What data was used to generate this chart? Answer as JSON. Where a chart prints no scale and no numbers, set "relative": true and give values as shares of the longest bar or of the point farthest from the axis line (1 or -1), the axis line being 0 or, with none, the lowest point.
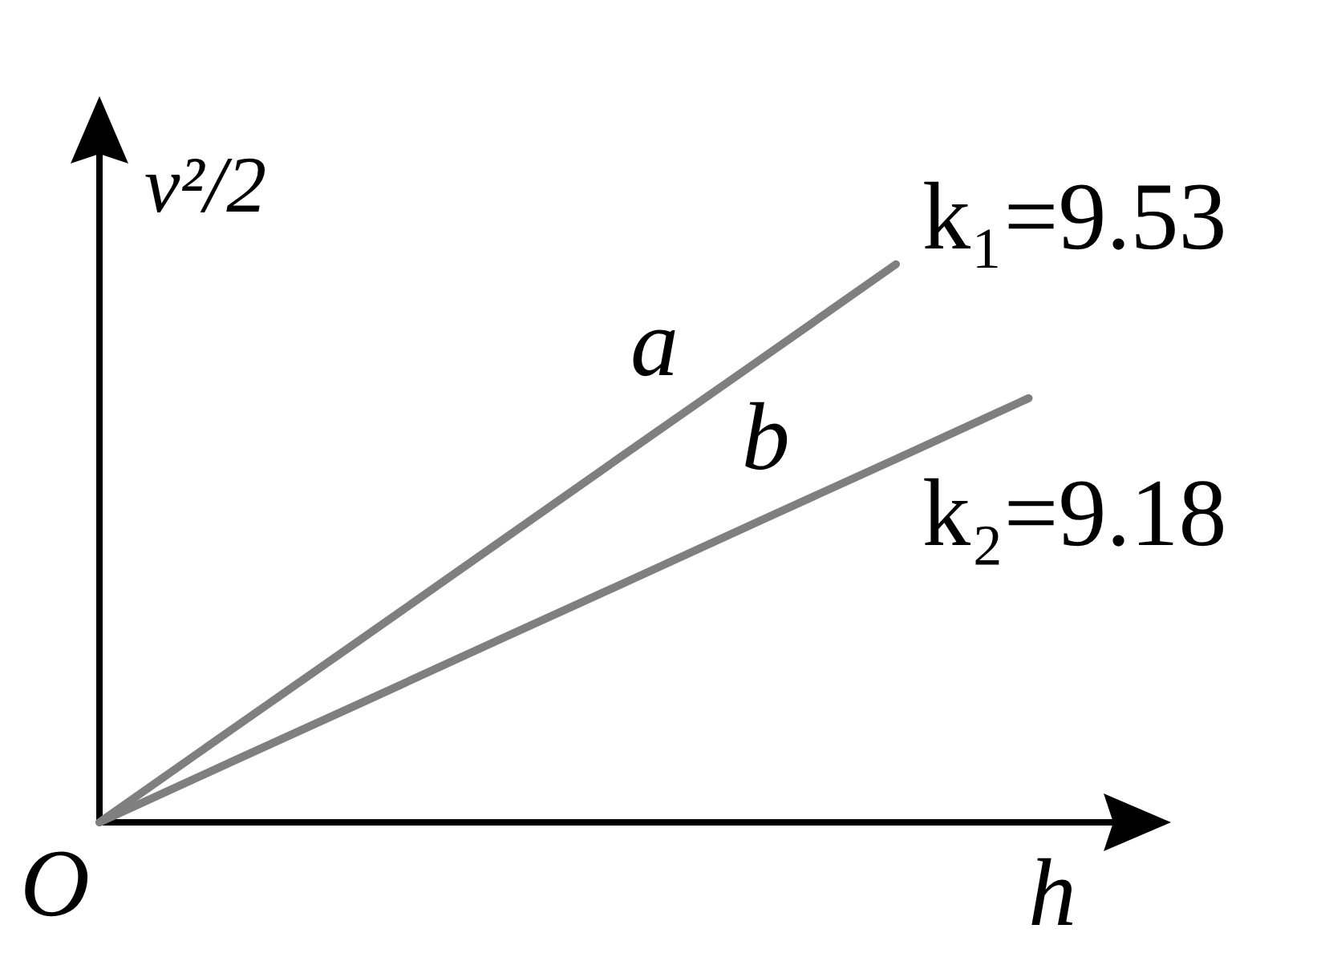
{
  "chart_data": {
    "type": "line",
    "relative": true,
    "xlabel": "h",
    "ylabel": "v²/2",
    "marker": "none",
    "line_style": "solid",
    "categories": [
      null,
      null,
      null,
      null,
      null,
      null,
      null,
      null
    ],
    "series": [
      {
        "name": "a",
        "color": "#7f7f7f",
        "values": [
          0,
          0.167,
          0.333,
          0.5,
          0.667,
          0.833,
          1,
          null
        ]
      },
      {
        "name": "b",
        "color": "#7f7f7f",
        "values": [
          0,
          0.109,
          0.217,
          0.326,
          0.434,
          0.543,
          0.651,
          0.76
        ]
      }
    ],
    "annotations": [
      "O",
      "k₁=9.53",
      "k₂=9.18"
    ]
  }
}
